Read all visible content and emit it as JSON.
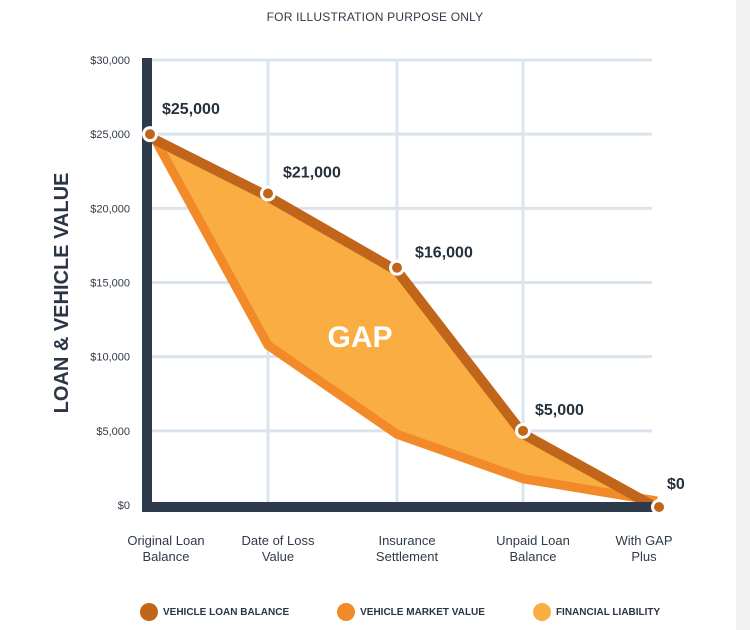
{
  "note": "FOR ILLUSTRATION PURPOSE ONLY",
  "chart_data": {
    "type": "area",
    "title": "",
    "ylabel": "LOAN & VEHICLE VALUE",
    "xlabel": "",
    "ylim": [
      0,
      30000
    ],
    "yticks": [
      0,
      5000,
      10000,
      15000,
      20000,
      25000,
      30000
    ],
    "ytick_labels": [
      "$0",
      "$5,000",
      "$10,000",
      "$15,000",
      "$20,000",
      "$25,000",
      "$30,000"
    ],
    "grid": true,
    "categories": [
      "Original Loan|Balance",
      "Date of Loss|Value",
      "Insurance|Settlement",
      "Unpaid Loan|Balance",
      "With GAP|Plus"
    ],
    "series": [
      {
        "name": "VEHICLE LOAN BALANCE",
        "color": "#c0651a",
        "values": [
          25000,
          21000,
          16000,
          5000,
          0
        ],
        "labels": [
          "$25,000",
          "$21,000",
          "$16,000",
          "$5,000",
          "$0"
        ]
      },
      {
        "name": "VEHICLE MARKET VALUE",
        "color": "#f28a2a",
        "values": [
          25000,
          10500,
          4500,
          1500,
          0
        ]
      },
      {
        "name": "FINANCIAL LIABILITY",
        "color": "#f9ad42"
      }
    ],
    "annotation": "GAP",
    "legend_position": "bottom"
  }
}
